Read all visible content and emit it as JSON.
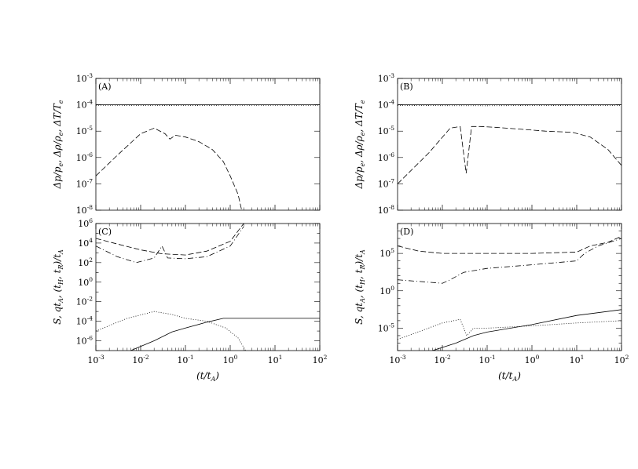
{
  "chart_data": [
    {
      "panel": "A",
      "type": "line",
      "label": "(A)",
      "ylabel": "Δp/p_e, Δρ/ρ_e, ΔT/T_e",
      "xlim": [
        0.001,
        100
      ],
      "ylim": [
        1e-08,
        0.001
      ],
      "xscale": "log",
      "yscale": "log",
      "yticks": [
        "-8",
        "-7",
        "-6",
        "-5",
        "-4",
        "-3"
      ],
      "series": [
        {
          "style": "solid",
          "x": [
            0.001,
            100
          ],
          "y": [
            0.0001,
            0.0001
          ]
        },
        {
          "style": "dotted",
          "x": [
            0.001,
            0.1,
            1,
            100
          ],
          "y": [
            9.6e-05,
            9.4e-05,
            9.6e-05,
            9.6e-05
          ]
        },
        {
          "style": "dashed",
          "x": [
            0.001,
            0.003,
            0.01,
            0.02,
            0.035,
            0.045,
            0.06,
            0.1,
            0.2,
            0.4,
            0.7,
            1.0,
            1.5,
            1.8
          ],
          "y": [
            2e-07,
            1.2e-06,
            8e-06,
            1.3e-05,
            8e-06,
            5e-06,
            7e-06,
            6e-06,
            4e-06,
            2e-06,
            7e-07,
            2e-07,
            4e-08,
            1e-08
          ]
        }
      ]
    },
    {
      "panel": "B",
      "type": "line",
      "label": "(B)",
      "ylabel": "Δp/p_e, Δρ/ρ_e, ΔT/T_e",
      "xlim": [
        0.001,
        100
      ],
      "ylim": [
        1e-08,
        0.001
      ],
      "xscale": "log",
      "yscale": "log",
      "yticks": [
        "-8",
        "-7",
        "-6",
        "-5",
        "-4",
        "-3"
      ],
      "series": [
        {
          "style": "solid",
          "x": [
            0.001,
            100
          ],
          "y": [
            0.0001,
            0.0001
          ]
        },
        {
          "style": "dotted",
          "x": [
            0.001,
            0.01,
            0.1,
            1,
            100
          ],
          "y": [
            9.5e-05,
            9.3e-05,
            9.2e-05,
            9.4e-05,
            9.5e-05
          ]
        },
        {
          "style": "dashed",
          "x": [
            0.001,
            0.005,
            0.015,
            0.025,
            0.034,
            0.045,
            0.07,
            0.15,
            0.5,
            2,
            8,
            20,
            50,
            100
          ],
          "y": [
            1e-07,
            1.5e-06,
            1.3e-05,
            1.5e-05,
            2.5e-07,
            1.5e-05,
            1.5e-05,
            1.4e-05,
            1.2e-05,
            1e-05,
            9e-06,
            6e-06,
            2e-06,
            5e-07
          ]
        }
      ]
    },
    {
      "panel": "C",
      "type": "line",
      "label": "(C)",
      "ylabel": "S, qt_A, (t_H, t_R)/t_A",
      "xlabel": "(t/t_A)",
      "xlim": [
        0.001,
        100
      ],
      "ylim": [
        1e-07,
        1000000.0
      ],
      "xscale": "log",
      "yscale": "log",
      "xticks": [
        "-3",
        "-2",
        "-1",
        "0",
        "1",
        "2"
      ],
      "yticks": [
        "-6",
        "-4",
        "-2",
        "0",
        "2",
        "4",
        "6"
      ],
      "series": [
        {
          "style": "dashed",
          "x": [
            0.001,
            0.003,
            0.01,
            0.03,
            0.1,
            0.3,
            1,
            2
          ],
          "y": [
            30000.0,
            8000.0,
            2000.0,
            800,
            600,
            1500,
            15000.0,
            1000000.0
          ]
        },
        {
          "style": "dash-dot",
          "x": [
            0.001,
            0.003,
            0.008,
            0.02,
            0.03,
            0.04,
            0.1,
            0.3,
            1,
            2
          ],
          "y": [
            5000.0,
            400,
            100,
            300,
            5000.0,
            300,
            250,
            400,
            5000.0,
            500000.0
          ]
        },
        {
          "style": "dotted",
          "x": [
            0.001,
            0.005,
            0.02,
            0.05,
            0.1,
            0.3,
            0.8,
            1.5,
            2.2
          ],
          "y": [
            1e-05,
            0.0002,
            0.001,
            0.0005,
            0.0002,
            0.0001,
            2e-05,
            2e-06,
            1e-07
          ]
        },
        {
          "style": "solid",
          "x": [
            0.006,
            0.02,
            0.05,
            0.1,
            0.3,
            0.7,
            100
          ],
          "y": [
            1e-07,
            1e-06,
            8e-06,
            2e-05,
            8e-05,
            0.0002,
            0.0002
          ]
        }
      ]
    },
    {
      "panel": "D",
      "type": "line",
      "label": "(D)",
      "ylabel": "S, qt_A, (t_H, t_R)/t_A",
      "xlabel": "(t/t_A)",
      "xlim": [
        0.001,
        100
      ],
      "ylim": [
        1e-08,
        1000000000.0
      ],
      "xscale": "log",
      "yscale": "log",
      "xticks": [
        "-3",
        "-2",
        "-1",
        "0",
        "1",
        "2"
      ],
      "yticks": [
        "-5",
        "0",
        "5"
      ],
      "series": [
        {
          "style": "dashed",
          "x": [
            0.001,
            0.003,
            0.01,
            0.03,
            0.1,
            1,
            10,
            20,
            50,
            100
          ],
          "y": [
            1000000.0,
            200000.0,
            100000.0,
            100000.0,
            100000.0,
            100000.0,
            150000.0,
            1000000.0,
            3000000.0,
            20000000.0
          ]
        },
        {
          "style": "dash-dot",
          "x": [
            0.001,
            0.01,
            0.015,
            0.03,
            0.1,
            1,
            10,
            15,
            30,
            100
          ],
          "y": [
            30,
            10,
            30,
            300,
            1000.0,
            3000.0,
            10000.0,
            100000.0,
            1000000.0,
            10000000.0
          ]
        },
        {
          "style": "dotted",
          "x": [
            0.001,
            0.01,
            0.025,
            0.035,
            0.05,
            0.1,
            1,
            10,
            100
          ],
          "y": [
            3e-07,
            5e-05,
            0.00015,
            1e-06,
            1e-05,
            1e-05,
            2e-05,
            5e-05,
            0.0001
          ]
        },
        {
          "style": "solid",
          "x": [
            0.006,
            0.02,
            0.05,
            0.1,
            1,
            10,
            100
          ],
          "y": [
            1e-08,
            1e-07,
            1e-06,
            3e-06,
            3e-05,
            0.0005,
            0.003
          ]
        }
      ]
    }
  ]
}
